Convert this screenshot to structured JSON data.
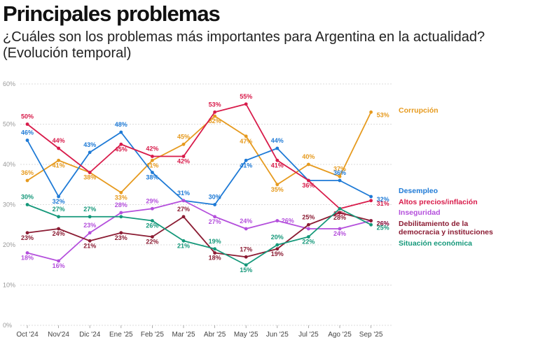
{
  "header": {
    "title": "Principales problemas",
    "subtitle": "¿Cuáles son los problemas más importantes para Argentina en la actualidad? (Evolución temporal)"
  },
  "chart_data": {
    "type": "line",
    "title": "Principales problemas",
    "subtitle": "¿Cuáles son los problemas más importantes para Argentina en la actualidad? (Evolución temporal)",
    "xlabel": "",
    "ylabel": "",
    "ylim": [
      0,
      60
    ],
    "yticks": [
      0,
      10,
      20,
      30,
      40,
      50,
      60
    ],
    "ytick_labels": [
      "0%",
      "10%",
      "20%",
      "30%",
      "40%",
      "50%",
      "60%"
    ],
    "grid": true,
    "legend": "inline labels at right end of each series",
    "categories": [
      "Oct '24",
      "Nov'24",
      "Dic '24",
      "Ene '25",
      "Feb '25",
      "Mar '25",
      "Abr '25",
      "May '25",
      "Jun '25",
      "Jul '25",
      "Ago '25",
      "Sep '25"
    ],
    "series": [
      {
        "name": "Corrupción",
        "color": "#e69a1e",
        "values": [
          36,
          41,
          38,
          33,
          41,
          45,
          52,
          47,
          35,
          40,
          37,
          53
        ],
        "labeled": [
          0,
          1,
          2,
          3,
          4,
          5,
          6,
          7,
          8,
          9,
          10,
          11
        ],
        "label_dy": [
          -8,
          10,
          10,
          10,
          10,
          -8,
          10,
          10,
          10,
          -8,
          -8,
          4
        ]
      },
      {
        "name": "Desempleo",
        "color": "#1e7ad6",
        "values": [
          46,
          32,
          43,
          48,
          38,
          31,
          30,
          41,
          44,
          36,
          36,
          32
        ],
        "labeled": [
          0,
          1,
          2,
          3,
          4,
          5,
          6,
          7,
          8,
          10,
          11
        ],
        "label_dy": [
          -8,
          10,
          -8,
          -8,
          10,
          -8,
          -8,
          10,
          -8,
          0,
          -8,
          4
        ]
      },
      {
        "name": "Altos precios/inflación",
        "color": "#d81b4a",
        "values": [
          50,
          44,
          38,
          45,
          42,
          42,
          53,
          55,
          41,
          36,
          29,
          31
        ],
        "labeled": [
          0,
          1,
          3,
          4,
          5,
          6,
          7,
          8,
          9,
          10,
          11
        ],
        "label_dy": [
          -8,
          -8,
          0,
          10,
          -8,
          10,
          -8,
          -8,
          10,
          10,
          10,
          4
        ]
      },
      {
        "name": "Inseguridad",
        "color": "#b44fdc",
        "values": [
          18,
          16,
          23,
          28,
          29,
          31,
          27,
          24,
          26,
          24,
          24,
          26
        ],
        "labeled": [
          0,
          1,
          2,
          3,
          4,
          6,
          7,
          8,
          10,
          11
        ],
        "label_dy": [
          10,
          10,
          -8,
          -8,
          -8,
          0,
          10,
          -8,
          0,
          10,
          10,
          4
        ]
      },
      {
        "name": "Debilitamiento de la democracia y instituciones",
        "color": "#8b1c33",
        "values": [
          23,
          24,
          21,
          23,
          22,
          27,
          18,
          17,
          19,
          25,
          28,
          26
        ],
        "labeled": [
          0,
          1,
          2,
          3,
          4,
          5,
          6,
          7,
          8,
          9,
          10,
          11
        ],
        "label_dy": [
          10,
          10,
          10,
          10,
          10,
          -8,
          10,
          -8,
          10,
          -8,
          10,
          4
        ]
      },
      {
        "name": "Situación económica",
        "color": "#15987a",
        "values": [
          30,
          27,
          27,
          27,
          26,
          21,
          19,
          15,
          20,
          22,
          29,
          25
        ],
        "labeled": [
          0,
          1,
          2,
          4,
          5,
          6,
          7,
          8,
          9,
          11
        ],
        "label_dy": [
          -8,
          -8,
          -8,
          0,
          10,
          10,
          -8,
          10,
          -8,
          10,
          0,
          4
        ]
      }
    ],
    "series_label_lines": [
      [
        "Corrupción"
      ],
      [
        "Desempleo"
      ],
      [
        "Altos precios/inflación"
      ],
      [
        "Inseguridad"
      ],
      [
        "Debilitamiento de la",
        "democracia y instituciones"
      ],
      [
        "Situación económica"
      ]
    ]
  }
}
